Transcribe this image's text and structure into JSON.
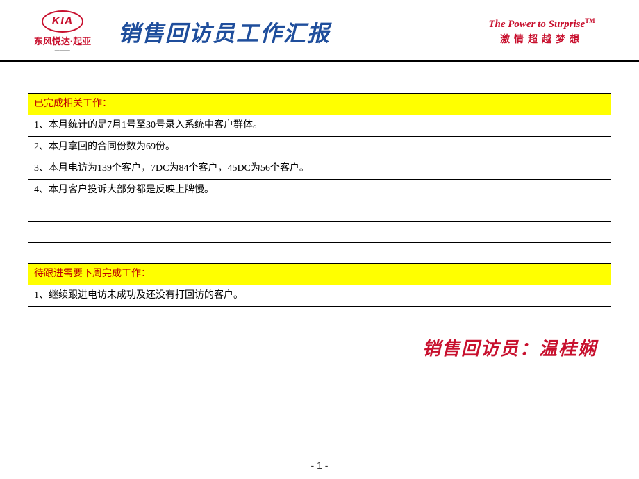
{
  "header": {
    "logo_left": {
      "brand_en": "KIA",
      "brand_cn": "东风悦达·起亚",
      "sub": "———"
    },
    "title": "销售回访员工作汇报",
    "logo_right": {
      "slogan_en": "The Power to Surprise",
      "tm": "TM",
      "slogan_cn": "激情超越梦想"
    }
  },
  "table": {
    "section1_header": "已完成相关工作：",
    "section1_rows": [
      "1、本月统计的是7月1号至30号录入系统中客户群体。",
      "2、本月拿回的合同份数为69份。",
      "3、本月电访为139个客户，7DC为84个客户，45DC为56个客户。",
      "4、本月客户投诉大部分都是反映上牌慢。"
    ],
    "section2_header": "待跟进需要下周完成工作：",
    "section2_rows": [
      "1、继续跟进电访未成功及还没有打回访的客户。"
    ]
  },
  "signature": "销售回访员：温桂娴",
  "page_number": "- 1 -",
  "colors": {
    "brand_red": "#c8102e",
    "title_blue": "#1f4e9c",
    "highlight_yellow": "#ffff00",
    "header_text_red": "#c00000",
    "divider_black": "#000000"
  }
}
